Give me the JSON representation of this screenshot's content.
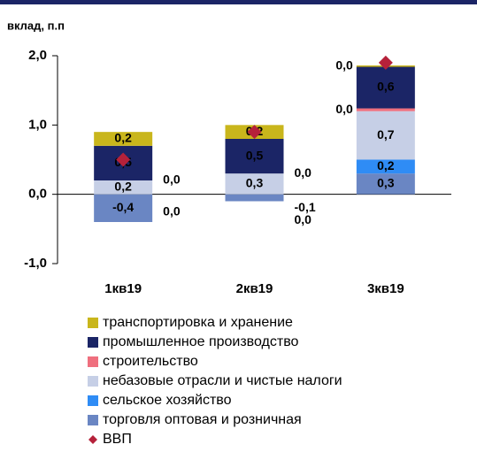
{
  "chart_data": {
    "type": "stacked-bar",
    "y_label": "вклад, п.п",
    "categories": [
      "1кв19",
      "2кв19",
      "3кв19"
    ],
    "ylim": [
      -1.0,
      2.0
    ],
    "yticks": [
      {
        "value": -1.0,
        "label": "-1,0"
      },
      {
        "value": 0.0,
        "label": "0,0"
      },
      {
        "value": 1.0,
        "label": "1,0"
      },
      {
        "value": 2.0,
        "label": "2,0"
      }
    ],
    "series": [
      {
        "name": "транспортировка и хранение",
        "color": "#c9b61c",
        "values": [
          0.2,
          0.2,
          0.02
        ],
        "value_labels": [
          "0,2",
          "0,2",
          "0,0"
        ]
      },
      {
        "name": "промышленное производство",
        "color": "#1b2566",
        "values": [
          0.5,
          0.5,
          0.6
        ],
        "value_labels": [
          "0,5",
          "0,5",
          "0,6"
        ]
      },
      {
        "name": "строительство",
        "color": "#ef6f7e",
        "values": [
          0.0,
          0.0,
          0.04
        ],
        "value_labels": [
          "0,0",
          "0,0",
          "0,0"
        ]
      },
      {
        "name": "небазовые отрасли и чистые налоги",
        "color": "#c6cfe6",
        "values": [
          0.2,
          0.3,
          0.7
        ],
        "value_labels": [
          "0,2",
          "0,3",
          "0,7"
        ]
      },
      {
        "name": "сельское хозяйство",
        "color": "#2f8cf5",
        "values": [
          0.0,
          0.0,
          0.2
        ],
        "value_labels": [
          "0,0",
          "0,0",
          "0,2"
        ]
      },
      {
        "name": "торговля оптовая и розничная",
        "color": "#6a86c3",
        "values": [
          -0.4,
          -0.1,
          0.3
        ],
        "value_labels": [
          "-0,4",
          "-0,1",
          "0,3"
        ]
      },
      {
        "name": "ВВП",
        "color": "#b5213a",
        "marker": "diamond",
        "values": [
          0.5,
          0.9,
          1.9
        ]
      }
    ]
  }
}
